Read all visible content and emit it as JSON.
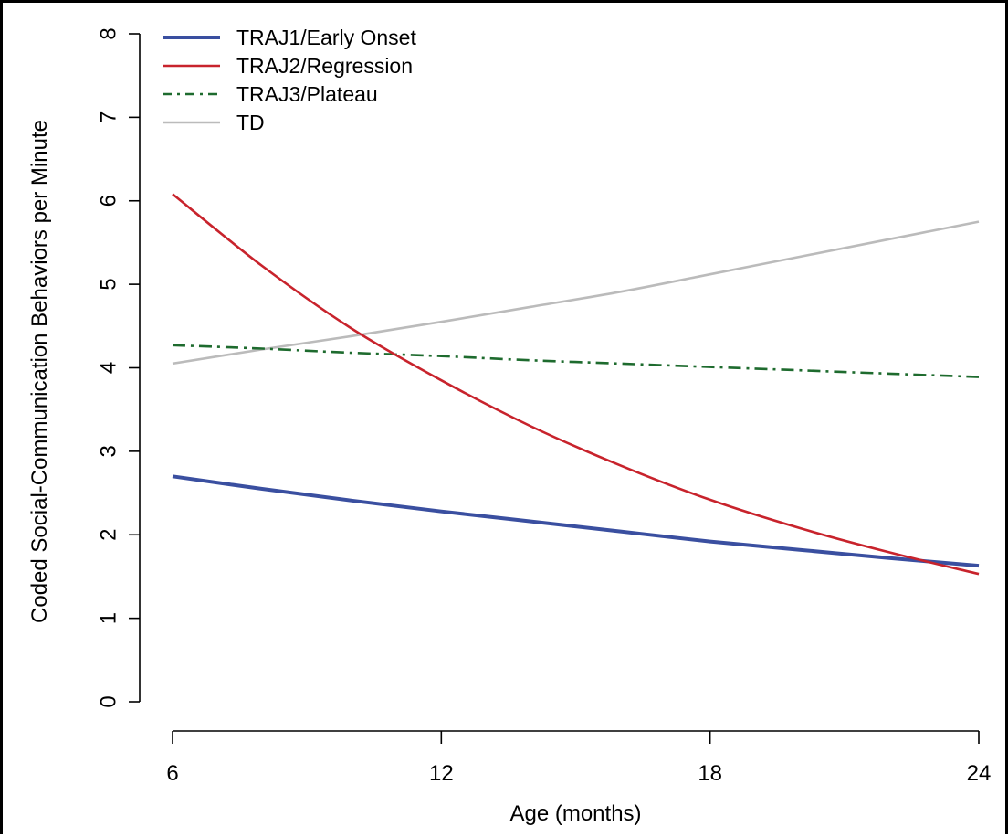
{
  "chart_data": {
    "type": "line",
    "xlabel": "Age (months)",
    "ylabel": "Coded Social-Communication Behaviors per Minute",
    "xlim": [
      6,
      24
    ],
    "ylim": [
      0,
      8
    ],
    "x_ticks": [
      "6",
      "12",
      "18",
      "24"
    ],
    "y_ticks": [
      "0",
      "1",
      "2",
      "3",
      "4",
      "5",
      "6",
      "7",
      "8"
    ],
    "grid": false,
    "legend_position": "top-left",
    "series": [
      {
        "name": "TRAJ1/Early Onset",
        "color": "#3a4fa0",
        "style": "solid-thick",
        "x": [
          6,
          8,
          10,
          12,
          14,
          16,
          18,
          20,
          22,
          24
        ],
        "y": [
          2.7,
          2.55,
          2.41,
          2.28,
          2.16,
          2.04,
          1.92,
          1.82,
          1.72,
          1.63
        ]
      },
      {
        "name": "TRAJ2/Regression",
        "color": "#c8232c",
        "style": "solid",
        "x": [
          6,
          8,
          10,
          12,
          14,
          16,
          18,
          20,
          22,
          24
        ],
        "y": [
          6.08,
          5.22,
          4.47,
          3.85,
          3.3,
          2.83,
          2.42,
          2.08,
          1.79,
          1.53
        ]
      },
      {
        "name": "TRAJ3/Plateau",
        "color": "#1e6b2e",
        "style": "dash-dot",
        "x": [
          6,
          8,
          10,
          12,
          14,
          16,
          18,
          20,
          22,
          24
        ],
        "y": [
          4.27,
          4.23,
          4.18,
          4.14,
          4.09,
          4.05,
          4.01,
          3.97,
          3.93,
          3.89
        ]
      },
      {
        "name": "TD",
        "color": "#bbbbbb",
        "style": "solid",
        "x": [
          6,
          8,
          10,
          12,
          14,
          16,
          18,
          20,
          22,
          24
        ],
        "y": [
          4.05,
          4.22,
          4.38,
          4.55,
          4.73,
          4.91,
          5.12,
          5.33,
          5.54,
          5.75
        ]
      }
    ]
  }
}
